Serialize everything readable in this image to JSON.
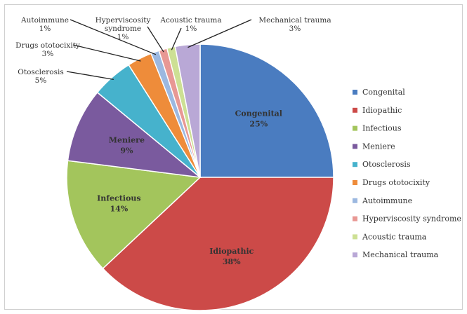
{
  "chart_data": {
    "type": "pie",
    "categories": [
      "Congenital",
      "Idiopathic",
      "Infectious",
      "Meniere",
      "Otosclerosis",
      "Drugs ototocixity",
      "Autoimmune",
      "Hyperviscosity syndrome",
      "Acoustic trauma",
      "Mechanical trauma"
    ],
    "values": [
      25,
      38,
      14,
      9,
      5,
      3,
      1,
      1,
      1,
      3
    ],
    "labels": [
      "25%",
      "38%",
      "14%",
      "9%",
      "5%",
      "3%",
      "1%",
      "1%",
      "1%",
      "3%"
    ],
    "colors": [
      "#4a7cc0",
      "#cc4a48",
      "#a3c55c",
      "#7a5a9e",
      "#46b2cc",
      "#ee8c3a",
      "#9cb8e0",
      "#e89894",
      "#cde094",
      "#b9a8d6"
    ],
    "legend_position": "right",
    "start_angle_deg": 0,
    "direction": "clockwise"
  }
}
